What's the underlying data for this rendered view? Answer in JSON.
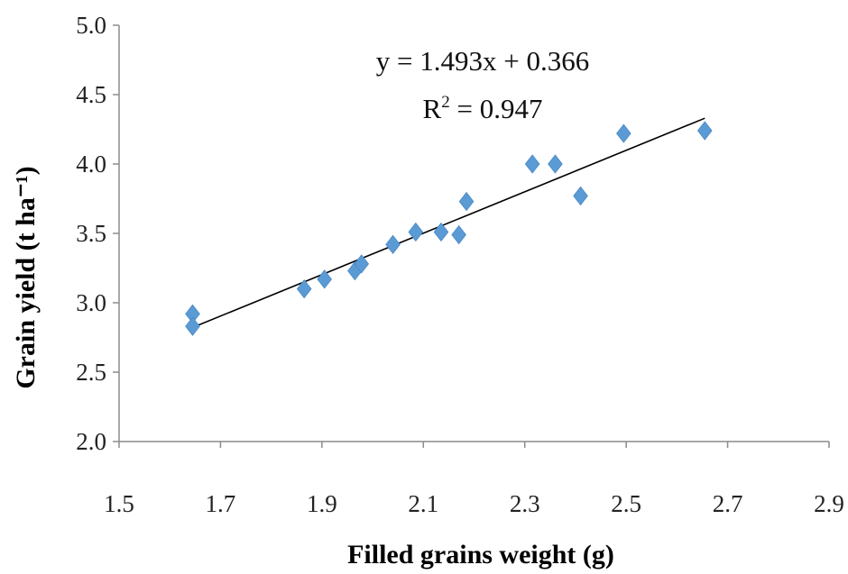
{
  "chart_data": {
    "type": "scatter",
    "xlabel": "Filled grains weight (g)",
    "ylabel": "Grain yield (t ha⁻¹)",
    "xlim": [
      1.5,
      2.9
    ],
    "ylim": [
      2.0,
      5.0
    ],
    "x_ticks": [
      "1.5",
      "1.7",
      "1.9",
      "2.1",
      "2.3",
      "2.5",
      "2.7",
      "2.9"
    ],
    "y_ticks": [
      "2.0",
      "2.5",
      "3.0",
      "3.5",
      "4.0",
      "4.5",
      "5.0"
    ],
    "grid": false,
    "series": [
      {
        "marker": "diamond",
        "color": "#5b9bd5",
        "points": [
          {
            "x": 1.645,
            "y": 2.92
          },
          {
            "x": 1.645,
            "y": 2.83
          },
          {
            "x": 1.865,
            "y": 3.1
          },
          {
            "x": 1.905,
            "y": 3.17
          },
          {
            "x": 1.965,
            "y": 3.23
          },
          {
            "x": 1.978,
            "y": 3.28
          },
          {
            "x": 2.04,
            "y": 3.42
          },
          {
            "x": 2.085,
            "y": 3.51
          },
          {
            "x": 2.135,
            "y": 3.51
          },
          {
            "x": 2.17,
            "y": 3.49
          },
          {
            "x": 2.185,
            "y": 3.73
          },
          {
            "x": 2.315,
            "y": 4.0
          },
          {
            "x": 2.36,
            "y": 4.0
          },
          {
            "x": 2.41,
            "y": 3.77
          },
          {
            "x": 2.495,
            "y": 4.22
          },
          {
            "x": 2.655,
            "y": 4.24
          }
        ]
      }
    ],
    "trendline": {
      "type": "linear",
      "slope": 1.493,
      "intercept": 0.366,
      "x_range": [
        1.645,
        2.655
      ],
      "color": "#000000"
    },
    "annotations": {
      "equation": "y = 1.493x + 0.366",
      "r2_label": "R",
      "r2_sup": "2",
      "r2_value": " = 0.947"
    }
  }
}
